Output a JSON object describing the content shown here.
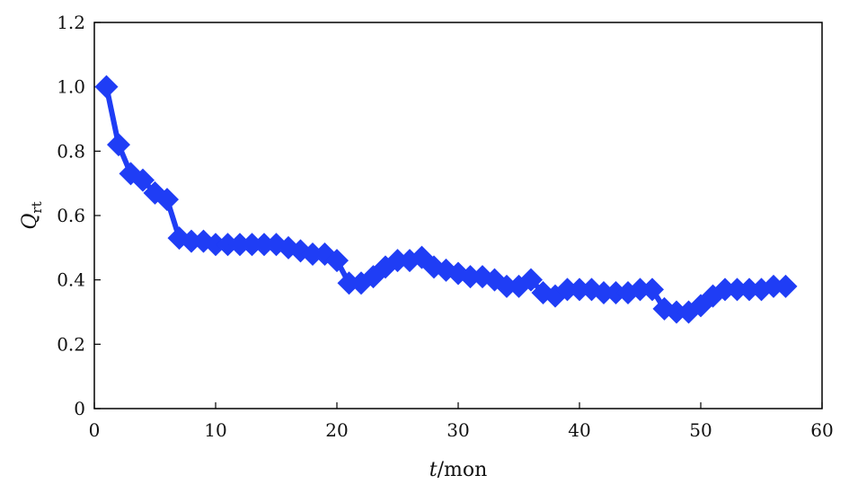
{
  "chart_data": {
    "type": "line",
    "xlabel_var": "t",
    "xlabel_unit": "/mon",
    "ylabel_var": "Q",
    "ylabel_sub": "rt",
    "xlim": [
      0,
      60
    ],
    "ylim": [
      0,
      1.2
    ],
    "xticks": [
      0,
      10,
      20,
      30,
      40,
      50,
      60
    ],
    "yticks": [
      "0",
      "0.2",
      "0.4",
      "0.6",
      "0.8",
      "1.0",
      "1.2"
    ],
    "ytick_values": [
      0,
      0.2,
      0.4,
      0.6,
      0.8,
      1.0,
      1.2
    ],
    "grid": false,
    "marker": "diamond",
    "series_color": "#1f3df5",
    "series": [
      {
        "x": [
          1,
          2,
          3,
          4,
          5,
          6,
          7,
          8,
          9,
          10,
          11,
          12,
          13,
          14,
          15,
          16,
          17,
          18,
          19,
          20,
          21,
          22,
          23,
          24,
          25,
          26,
          27,
          28,
          29,
          30,
          31,
          32,
          33,
          34,
          35,
          36,
          37,
          38,
          39,
          40,
          41,
          42,
          43,
          44,
          45,
          46,
          47,
          48,
          49,
          50,
          51,
          52,
          53,
          54,
          55,
          56,
          57
        ],
        "y": [
          1.0,
          0.82,
          0.73,
          0.71,
          0.67,
          0.65,
          0.53,
          0.52,
          0.52,
          0.51,
          0.51,
          0.51,
          0.51,
          0.51,
          0.51,
          0.5,
          0.49,
          0.48,
          0.48,
          0.46,
          0.39,
          0.39,
          0.41,
          0.44,
          0.46,
          0.46,
          0.47,
          0.44,
          0.43,
          0.42,
          0.41,
          0.41,
          0.4,
          0.38,
          0.38,
          0.4,
          0.36,
          0.35,
          0.37,
          0.37,
          0.37,
          0.36,
          0.36,
          0.36,
          0.37,
          0.37,
          0.31,
          0.3,
          0.3,
          0.32,
          0.35,
          0.37,
          0.37,
          0.37,
          0.37,
          0.38,
          0.38
        ]
      }
    ]
  }
}
